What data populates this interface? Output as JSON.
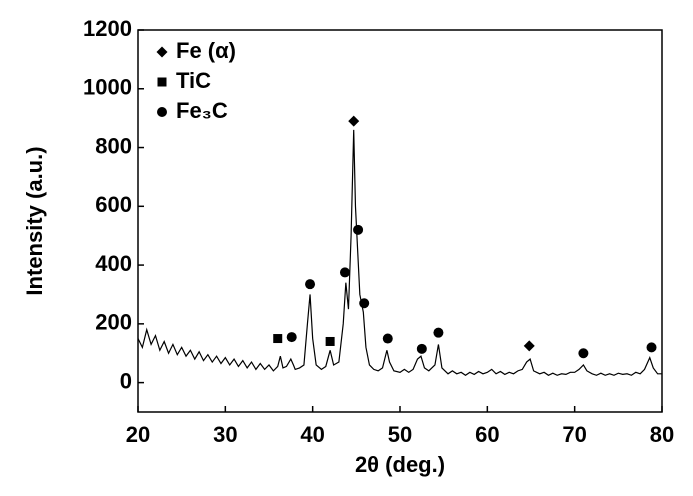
{
  "chart_data": {
    "type": "line",
    "xlabel": "2θ (deg.)",
    "ylabel": "Intensity (a.u.)",
    "xlim": [
      20,
      80
    ],
    "xticks": [
      20,
      30,
      40,
      50,
      60,
      70,
      80
    ],
    "ylim": [
      -100,
      1200
    ],
    "yticks": [
      0,
      200,
      400,
      600,
      800,
      1000,
      1200
    ],
    "legend": "upper left",
    "series": [
      {
        "type": "line",
        "color": "#000000",
        "x": [
          20,
          20.5,
          21,
          21.5,
          22,
          22.5,
          23,
          23.5,
          24,
          24.5,
          25,
          25.5,
          26,
          26.5,
          27,
          27.5,
          28,
          28.5,
          29,
          29.5,
          30,
          30.5,
          31,
          31.5,
          32,
          32.5,
          33,
          33.5,
          34,
          34.5,
          35,
          35.5,
          36,
          36.3,
          36.6,
          37,
          37.5,
          37.8,
          38,
          38.5,
          39,
          39.4,
          39.7,
          40,
          40.4,
          41,
          41.5,
          42,
          42.4,
          43,
          43.5,
          43.8,
          44.1,
          44.4,
          44.7,
          44.9,
          45.1,
          45.4,
          45.8,
          46.1,
          46.5,
          47,
          47.5,
          48,
          48.5,
          48.8,
          49.3,
          50,
          50.5,
          51,
          51.5,
          52,
          52.4,
          52.8,
          53.3,
          54,
          54.4,
          54.8,
          55.5,
          56,
          56.5,
          57,
          57.5,
          58,
          58.5,
          59,
          59.5,
          60,
          60.5,
          61,
          61.5,
          62,
          62.5,
          63,
          63.5,
          64,
          64.5,
          64.9,
          65.3,
          66,
          66.5,
          67,
          67.5,
          68,
          68.5,
          69,
          69.5,
          70,
          70.5,
          71,
          71.4,
          72,
          72.5,
          73,
          73.5,
          74,
          74.5,
          75,
          75.5,
          76,
          76.5,
          77,
          77.5,
          78,
          78.6,
          79,
          79.5,
          80
        ],
        "values": [
          150,
          120,
          180,
          130,
          160,
          110,
          140,
          100,
          130,
          95,
          120,
          90,
          110,
          80,
          105,
          75,
          95,
          70,
          90,
          65,
          85,
          60,
          80,
          55,
          75,
          50,
          70,
          45,
          65,
          45,
          60,
          40,
          55,
          90,
          50,
          55,
          80,
          60,
          45,
          50,
          60,
          200,
          300,
          150,
          60,
          45,
          55,
          110,
          60,
          70,
          200,
          340,
          250,
          500,
          860,
          600,
          480,
          300,
          240,
          120,
          60,
          45,
          40,
          50,
          110,
          70,
          40,
          35,
          45,
          35,
          45,
          80,
          90,
          50,
          40,
          60,
          130,
          50,
          30,
          40,
          30,
          35,
          25,
          35,
          28,
          38,
          30,
          35,
          45,
          30,
          38,
          28,
          35,
          30,
          40,
          45,
          70,
          80,
          40,
          30,
          35,
          25,
          32,
          25,
          30,
          28,
          35,
          35,
          45,
          60,
          40,
          30,
          25,
          32,
          25,
          30,
          25,
          32,
          28,
          30,
          25,
          35,
          30,
          45,
          85,
          50,
          30,
          30
        ]
      },
      {
        "type": "scatter",
        "name": "Fe (α)",
        "marker": "diamond",
        "color": "#000000",
        "x": [
          44.7,
          64.8
        ],
        "values": [
          890,
          125
        ]
      },
      {
        "type": "scatter",
        "name": "TiC",
        "marker": "square",
        "color": "#000000",
        "x": [
          36,
          42
        ],
        "values": [
          150,
          140
        ]
      },
      {
        "type": "scatter",
        "name": "Fe₃C",
        "marker": "circle",
        "color": "#000000",
        "x": [
          37.6,
          39.7,
          43.7,
          45.2,
          45.9,
          48.6,
          52.5,
          54.4,
          71,
          78.8
        ],
        "values": [
          155,
          335,
          375,
          520,
          270,
          150,
          115,
          170,
          100,
          120
        ]
      }
    ]
  }
}
